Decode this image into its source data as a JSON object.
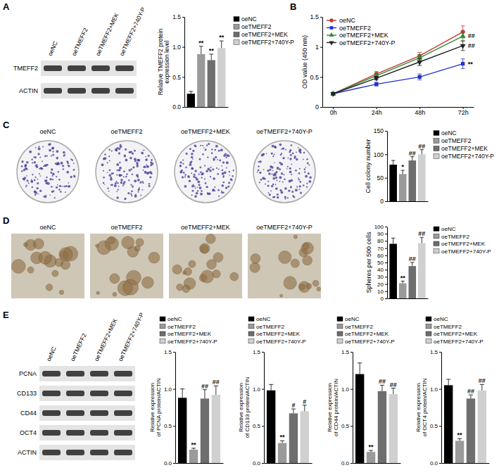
{
  "figure": {
    "panel_letters": [
      "A",
      "B",
      "C",
      "D",
      "E"
    ],
    "blot_a": {
      "lanes": [
        "oeNC",
        "oeTMEFF2",
        "oeTMEFF2+MEK",
        "oeTMEFF2+740Y-P"
      ],
      "rows": [
        "TMEFF2",
        "ACTIN"
      ]
    },
    "images_c": {
      "labels": [
        "oeNC",
        "oeTMEFF2",
        "oeTMEFF2+MEK",
        "oeTMEFF2+740Y-P"
      ]
    },
    "images_d": {
      "labels": [
        "oeNC",
        "oeTMEFF2",
        "oeTMEFF2+MEK",
        "oeTMEFF2+740Y-P"
      ]
    },
    "blot_e": {
      "lanes": [
        "oeNC",
        "oeTMEFF2",
        "oeTMEFF2+MEK",
        "oeTMEFF2+740Y-P"
      ],
      "rows": [
        "PCNA",
        "CD133",
        "CD44",
        "OCT4",
        "ACTIN"
      ]
    }
  },
  "chart_data": [
    {
      "type": "bar",
      "ylabel": "Relative TMEFF2 protein expression level",
      "categories": [
        "oeNC",
        "oeTMEFF2",
        "oeTMEFF2+MEK",
        "oeTMEFF2+740Y-P"
      ],
      "values": [
        0.22,
        0.88,
        0.78,
        0.98
      ],
      "errors": [
        0.04,
        0.13,
        0.1,
        0.12
      ],
      "annotations": [
        null,
        "**",
        "**",
        "**"
      ],
      "colors": [
        "#000000",
        "#9a9a9a",
        "#6e6e6e",
        "#d0d0d0"
      ],
      "ylim": [
        0,
        1.5
      ],
      "yticks": [
        {
          "value": 0,
          "label": "0.0"
        },
        0.5,
        {
          "value": 1,
          "label": "1.0"
        },
        1.5
      ],
      "grid": false,
      "legend": "right",
      "tick_labels": "y"
    },
    {
      "type": "line",
      "ylabel": "OD value (450 nm)",
      "x": [
        0,
        24,
        48,
        72
      ],
      "xlim": [
        -6,
        78
      ],
      "xticks": [
        {
          "value": 0,
          "label": "0h"
        },
        {
          "value": 24,
          "label": "24h"
        },
        {
          "value": 48,
          "label": "48h"
        },
        {
          "value": 72,
          "label": "72h"
        }
      ],
      "ylim": [
        0,
        1.5
      ],
      "yticks": [
        0,
        0.5,
        1,
        1.5
      ],
      "series": [
        {
          "name": "oeNC",
          "color": "#c0392b",
          "marker": "circle",
          "values": [
            0.22,
            0.55,
            0.85,
            1.25
          ],
          "errors": [
            0.02,
            0.04,
            0.06,
            0.1
          ]
        },
        {
          "name": "oeTMEFF2",
          "color": "#2233cc",
          "marker": "square",
          "values": [
            0.22,
            0.38,
            0.5,
            0.72
          ],
          "errors": [
            0.02,
            0.03,
            0.05,
            0.08
          ]
        },
        {
          "name": "oeTMEFF2+MEK",
          "color": "#2e8b3a",
          "marker": "triangle",
          "values": [
            0.22,
            0.52,
            0.82,
            1.18
          ],
          "errors": [
            0.02,
            0.04,
            0.05,
            0.08
          ]
        },
        {
          "name": "oeTMEFF2+740Y-P",
          "color": "#222222",
          "marker": "triangle-down",
          "values": [
            0.22,
            0.48,
            0.75,
            1.02
          ],
          "errors": [
            0.02,
            0.03,
            0.06,
            0.08
          ]
        }
      ],
      "annotations": [
        null,
        "**",
        "##",
        "##"
      ],
      "grid": false,
      "legend": "top-left"
    },
    {
      "type": "bar",
      "ylabel": "Cell colony number",
      "categories": [
        "oeNC",
        "oeTMEFF2",
        "oeTMEFF2+MEK",
        "oeTMEFF2+740Y-P"
      ],
      "values": [
        78,
        58,
        87,
        100
      ],
      "errors": [
        9,
        8,
        8,
        10
      ],
      "annotations": [
        null,
        "*",
        "##",
        "##"
      ],
      "colors": [
        "#000000",
        "#9a9a9a",
        "#6e6e6e",
        "#d0d0d0"
      ],
      "ylim": [
        0,
        150
      ],
      "yticks": [
        0,
        50,
        100,
        150
      ],
      "grid": false,
      "legend": "right",
      "tick_labels": "y"
    },
    {
      "type": "bar",
      "ylabel": "Spheres per 500 cells",
      "categories": [
        "oeNC",
        "oeTMEFF2",
        "oeTMEFF2+MEK",
        "oeTMEFF2+740Y-P"
      ],
      "values": [
        76,
        21,
        45,
        77
      ],
      "errors": [
        8,
        3,
        5,
        8
      ],
      "annotations": [
        null,
        "**",
        "##",
        "##"
      ],
      "colors": [
        "#000000",
        "#9a9a9a",
        "#6e6e6e",
        "#d0d0d0"
      ],
      "ylim": [
        0,
        100
      ],
      "yticks": [
        0,
        10,
        20,
        30,
        40,
        50,
        60,
        70,
        80,
        90,
        100
      ],
      "grid": false,
      "legend": "right",
      "tick_labels": "y"
    },
    {
      "type": "bar",
      "ylabel": "Relative expression of PCNA protein/ACTIN",
      "categories": [
        "oeNC",
        "oeTMEFF2",
        "oeTMEFF2+MEK",
        "oeTMEFF2+740Y-P"
      ],
      "values": [
        0.88,
        0.18,
        0.87,
        0.92
      ],
      "errors": [
        0.12,
        0.02,
        0.12,
        0.12
      ],
      "annotations": [
        null,
        "**",
        "##",
        "##"
      ],
      "colors": [
        "#000000",
        "#9a9a9a",
        "#6e6e6e",
        "#d0d0d0"
      ],
      "ylim": [
        0,
        1.5
      ],
      "yticks": [
        {
          "value": 0,
          "label": "0.0"
        },
        0.5,
        {
          "value": 1,
          "label": "1.0"
        },
        1.5
      ],
      "grid": false,
      "legend": "top",
      "tick_labels": "y"
    },
    {
      "type": "bar",
      "ylabel": "Relative expression of CD133 protein/ACTIN",
      "categories": [
        "oeNC",
        "oeTMEFF2",
        "oeTMEFF2+MEK",
        "oeTMEFF2+740Y-P"
      ],
      "values": [
        0.98,
        0.27,
        0.67,
        0.7
      ],
      "errors": [
        0.08,
        0.03,
        0.06,
        0.08
      ],
      "annotations": [
        null,
        "**",
        "#",
        "#"
      ],
      "colors": [
        "#000000",
        "#9a9a9a",
        "#6e6e6e",
        "#d0d0d0"
      ],
      "ylim": [
        0,
        1.5
      ],
      "yticks": [
        {
          "value": 0,
          "label": "0.0"
        },
        0.5,
        {
          "value": 1,
          "label": "1.0"
        },
        1.5
      ],
      "grid": false,
      "legend": "top",
      "tick_labels": "y"
    },
    {
      "type": "bar",
      "ylabel": "Relative expression of CD44 protein/ACTIN",
      "categories": [
        "oeNC",
        "oeTMEFF2",
        "oeTMEFF2+MEK",
        "oeTMEFF2+740Y-P"
      ],
      "values": [
        1.2,
        0.15,
        0.97,
        0.93
      ],
      "errors": [
        0.15,
        0.02,
        0.08,
        0.08
      ],
      "annotations": [
        null,
        "**",
        "##",
        "##"
      ],
      "colors": [
        "#000000",
        "#9a9a9a",
        "#6e6e6e",
        "#d0d0d0"
      ],
      "ylim": [
        0,
        1.5
      ],
      "yticks": [
        {
          "value": 0,
          "label": "0.0"
        },
        0.5,
        {
          "value": 1,
          "label": "1.0"
        },
        1.5
      ],
      "grid": false,
      "legend": "top",
      "tick_labels": "y"
    },
    {
      "type": "bar",
      "ylabel": "Relative expression of OCT4 protein/ACTIN",
      "categories": [
        "oeNC",
        "oeTMEFF2",
        "oeTMEFF2+MEK",
        "oeTMEFF2+740Y-P"
      ],
      "values": [
        1.05,
        0.3,
        0.87,
        0.98
      ],
      "errors": [
        0.08,
        0.03,
        0.05,
        0.08
      ],
      "annotations": [
        null,
        "**",
        "##",
        "##"
      ],
      "colors": [
        "#000000",
        "#9a9a9a",
        "#6e6e6e",
        "#d0d0d0"
      ],
      "ylim": [
        0,
        1.5
      ],
      "yticks": [
        {
          "value": 0,
          "label": "0.0"
        },
        0.5,
        {
          "value": 1,
          "label": "1.0"
        },
        1.5
      ],
      "grid": false,
      "legend": "top",
      "tick_labels": "y"
    }
  ]
}
